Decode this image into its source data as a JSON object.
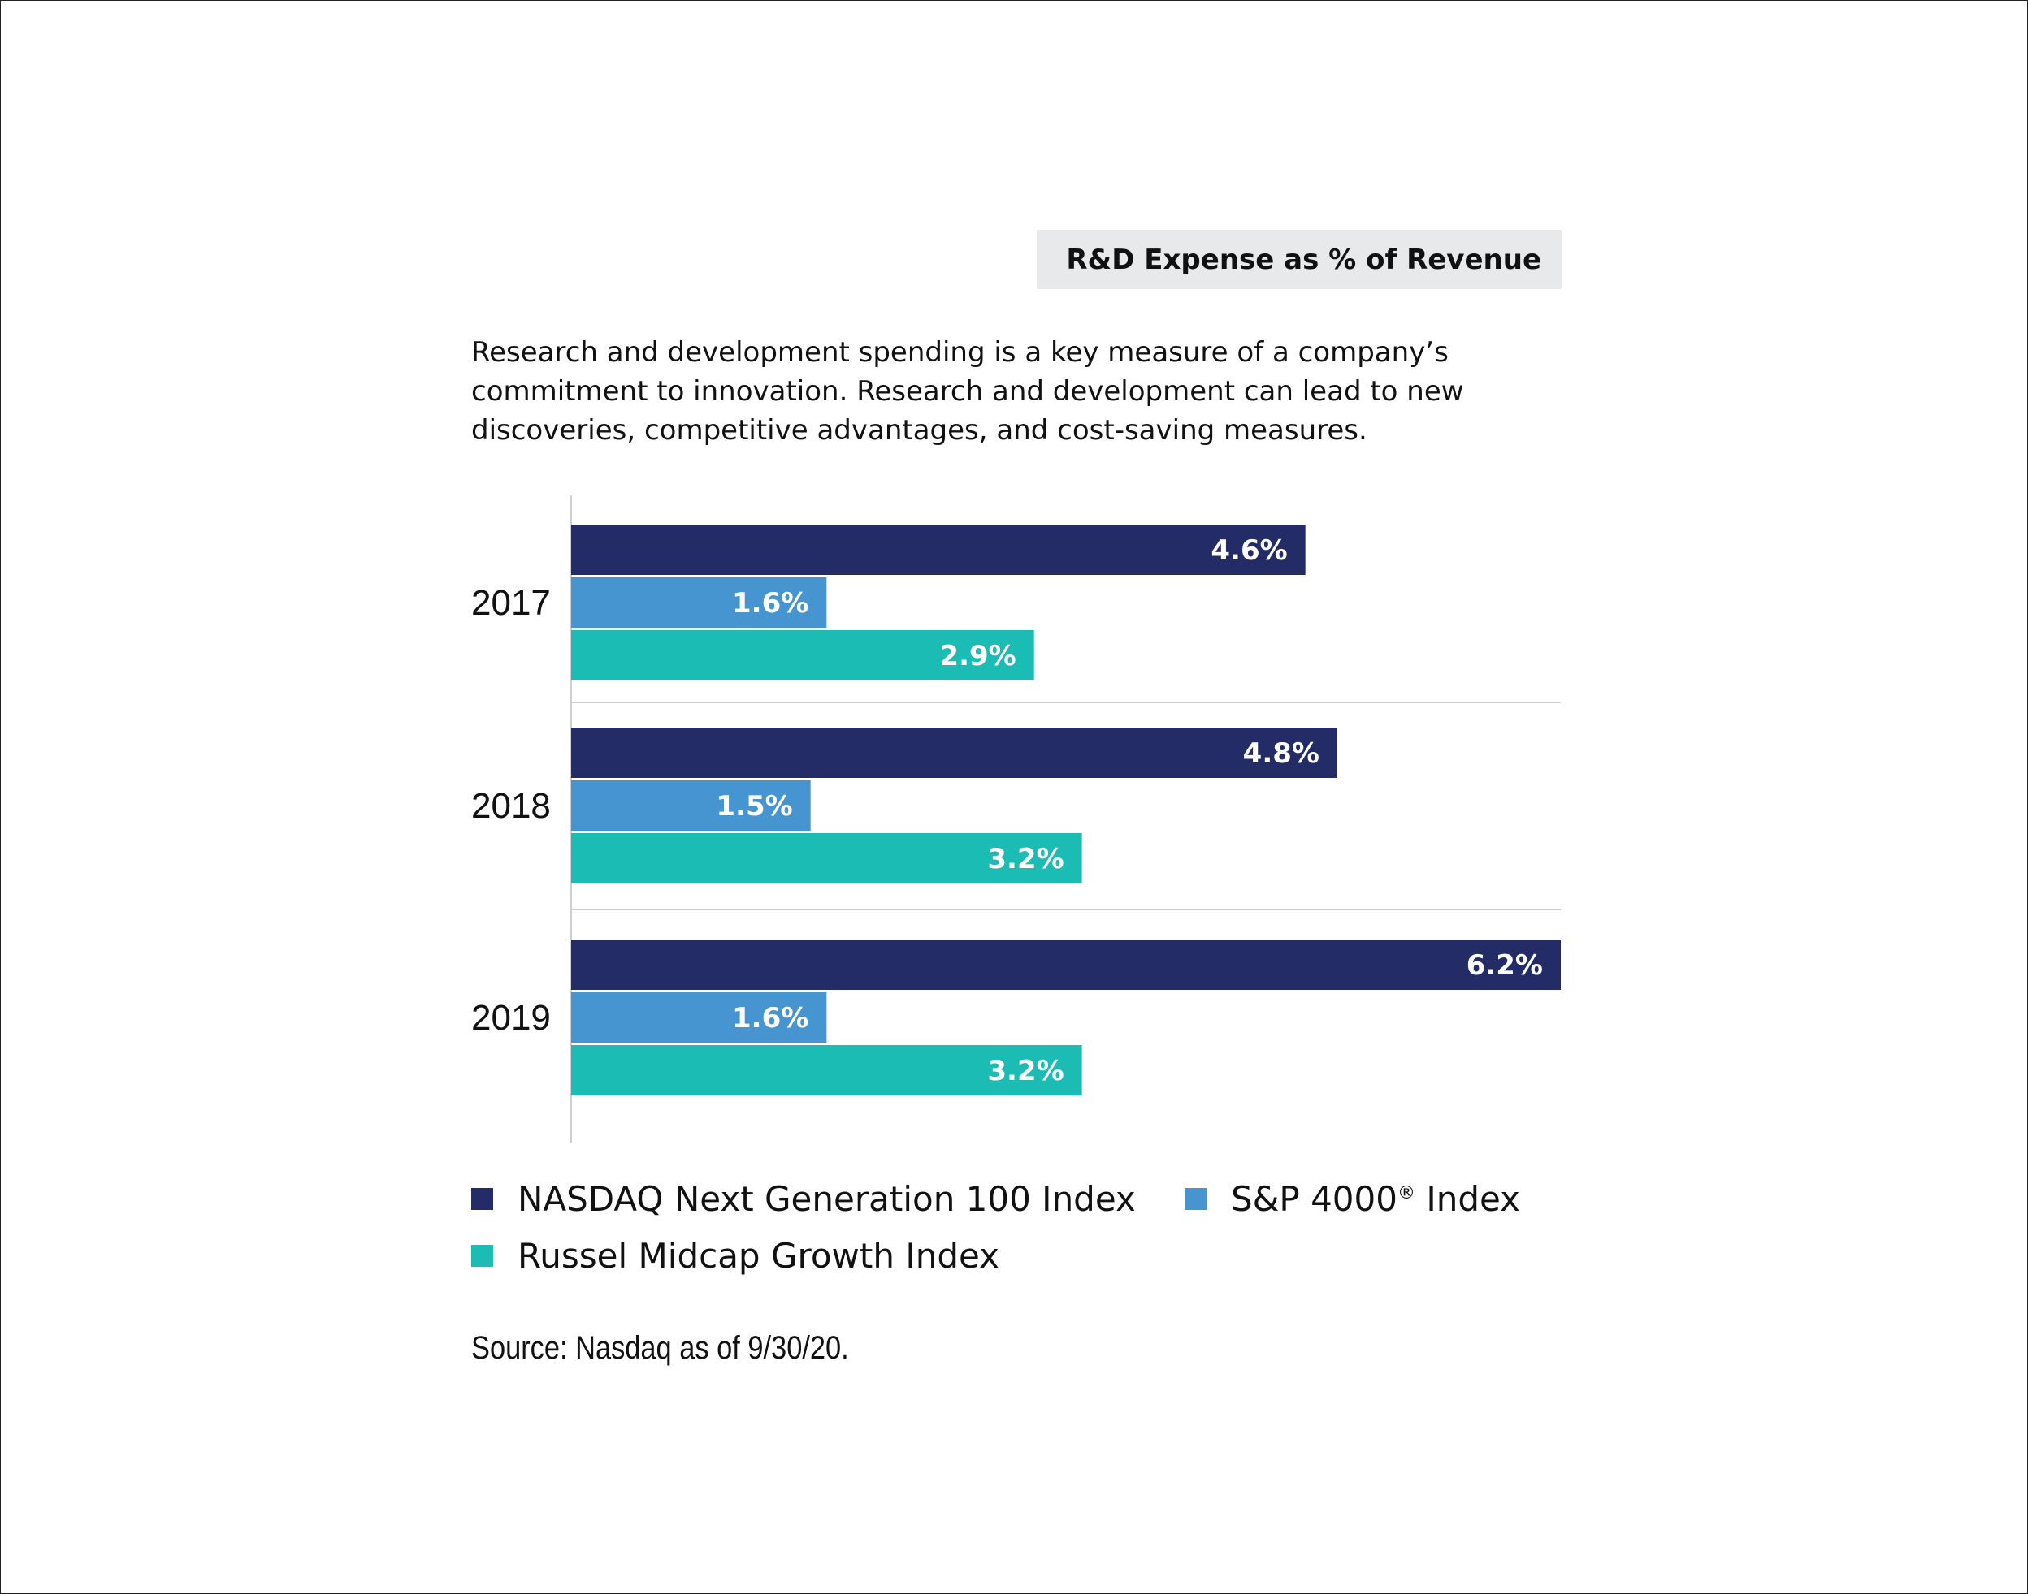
{
  "chart_data": {
    "type": "bar",
    "orientation": "horizontal",
    "title": "R&D Expense as % of Revenue",
    "description": [
      "Research and development spending is a key measure of a company’s",
      "commitment to innovation. Research and development can lead to new",
      "discoveries, competitive advantages, and cost-saving measures."
    ],
    "categories": [
      "2017",
      "2018",
      "2019"
    ],
    "series": [
      {
        "name": "NASDAQ Next Generation 100 Index",
        "color": "#232c66",
        "values": [
          4.6,
          4.8,
          6.2
        ],
        "labels": [
          "4.6%",
          "4.8%",
          "6.2%"
        ]
      },
      {
        "name": "S&P 4000",
        "name_suffix": "®",
        "name_tail": " Index",
        "color": "#4694d0",
        "values": [
          1.6,
          1.5,
          1.6
        ],
        "labels": [
          "1.6%",
          "1.5%",
          "1.6%"
        ]
      },
      {
        "name": "Russel Midcap Growth Index",
        "color": "#1bbcb4",
        "values": [
          2.9,
          3.2,
          3.2
        ],
        "labels": [
          "2.9%",
          "3.2%",
          "3.2%"
        ]
      }
    ],
    "xlim": [
      0,
      6.2
    ],
    "grid": false,
    "legend_position": "bottom",
    "source": "Source: Nasdaq as of 9/30/20."
  }
}
